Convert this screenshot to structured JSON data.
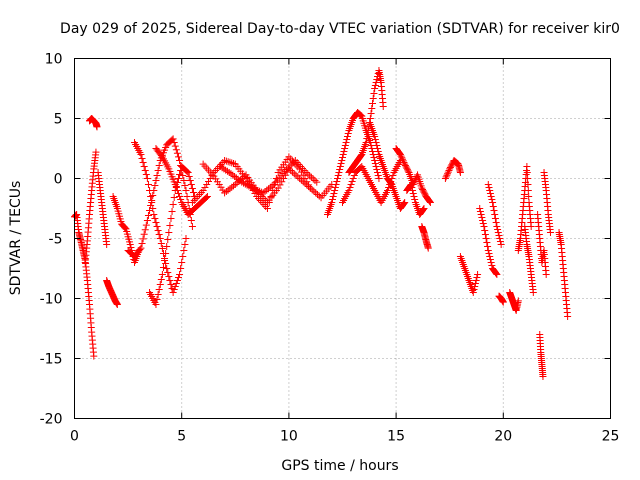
{
  "chart_data": {
    "type": "scatter",
    "title": "Day 029 of 2025, Sidereal Day-to-day VTEC variation (SDTVAR) for receiver kir0",
    "xlabel": "GPS time / hours",
    "ylabel": "SDTVAR / TECUs",
    "xlim": [
      0,
      25
    ],
    "ylim": [
      -20,
      10
    ],
    "grid": true,
    "marker": "+",
    "color": "#ff0000",
    "x_ticks": [
      0,
      5,
      10,
      15,
      20,
      25
    ],
    "y_ticks": [
      -20,
      -15,
      -10,
      -5,
      0,
      5,
      10
    ],
    "x_tick_labels": [
      "0",
      "5",
      "10",
      "15",
      "20",
      "25"
    ],
    "y_tick_labels": [
      "-20",
      "-15",
      "-10",
      "-5",
      "0",
      "5",
      "10"
    ],
    "series": [
      {
        "name": "a1",
        "x": [
          0.0,
          0.1,
          0.2,
          0.3,
          0.4,
          0.5,
          0.6,
          0.7,
          0.8,
          0.9
        ],
        "y": [
          -3.2,
          -3.0,
          -4.5,
          -5.2,
          -6.0,
          -6.8,
          -8.5,
          -10.5,
          -12.8,
          -14.8
        ]
      },
      {
        "name": "a2",
        "x": [
          0.5,
          0.6,
          0.7,
          0.8,
          0.9,
          1.0
        ],
        "y": [
          -7.0,
          -5.2,
          -3.0,
          -1.0,
          0.8,
          2.2
        ]
      },
      {
        "name": "a3",
        "x": [
          0.7,
          0.8,
          0.9,
          1.0,
          1.05
        ],
        "y": [
          4.8,
          5.0,
          4.8,
          4.6,
          4.3
        ]
      },
      {
        "name": "a4",
        "x": [
          1.1,
          1.2,
          1.3,
          1.4,
          1.5
        ],
        "y": [
          0.5,
          -1.0,
          -2.5,
          -4.0,
          -5.5
        ]
      },
      {
        "name": "a5",
        "x": [
          1.5,
          1.6,
          1.7,
          1.8,
          1.9,
          2.0
        ],
        "y": [
          -8.5,
          -9.0,
          -9.4,
          -9.8,
          -10.2,
          -10.5
        ]
      },
      {
        "name": "a6",
        "x": [
          1.8,
          2.0,
          2.2,
          2.4,
          2.6,
          2.8,
          3.0
        ],
        "y": [
          -1.5,
          -2.5,
          -3.8,
          -4.2,
          -5.5,
          -7.0,
          -6.0
        ]
      },
      {
        "name": "b1",
        "x": [
          2.5,
          2.8,
          3.1,
          3.4,
          3.7,
          4.0,
          4.3,
          4.6,
          4.9,
          5.2,
          5.5
        ],
        "y": [
          -6.0,
          -6.5,
          -5.8,
          -3.5,
          -1.0,
          1.5,
          2.8,
          3.3,
          1.5,
          -1.0,
          -4.0
        ]
      },
      {
        "name": "b2",
        "x": [
          3.5,
          3.8,
          4.1,
          4.4,
          4.7,
          5.0,
          5.3,
          5.6
        ],
        "y": [
          -9.5,
          -10.5,
          -8.0,
          -4.5,
          -1.0,
          1.0,
          0.5,
          -1.5
        ]
      },
      {
        "name": "b3",
        "x": [
          2.8,
          3.1,
          3.4,
          3.7,
          4.0,
          4.3,
          4.6,
          4.9,
          5.2
        ],
        "y": [
          3.0,
          2.0,
          0.0,
          -3.0,
          -5.0,
          -7.5,
          -9.5,
          -8.0,
          -5.0
        ]
      },
      {
        "name": "b4",
        "x": [
          3.8,
          4.1,
          4.4,
          4.7,
          5.0,
          5.3,
          5.6,
          5.9,
          6.2
        ],
        "y": [
          2.5,
          1.8,
          0.8,
          -0.5,
          -2.0,
          -3.0,
          -2.5,
          -2.0,
          -1.5
        ]
      },
      {
        "name": "c1",
        "x": [
          6.0,
          6.5,
          7.0,
          7.5,
          8.0,
          8.5,
          9.0,
          9.5,
          10.0,
          10.5,
          11.0,
          11.5,
          12.0
        ],
        "y": [
          1.2,
          0.2,
          -1.2,
          -0.5,
          0.3,
          -1.0,
          -2.0,
          -0.8,
          0.8,
          0.0,
          -0.8,
          -1.6,
          -0.5
        ]
      },
      {
        "name": "c2",
        "x": [
          5.5,
          6.0,
          6.5,
          7.0,
          7.5,
          8.0,
          8.5,
          9.0,
          9.5,
          10.0,
          10.5,
          11.0
        ],
        "y": [
          -2.0,
          -1.0,
          0.5,
          1.5,
          1.2,
          0.0,
          -1.5,
          -2.5,
          0.5,
          1.8,
          0.8,
          -0.8
        ]
      },
      {
        "name": "c3",
        "x": [
          6.8,
          7.3,
          7.8,
          8.3,
          8.8,
          9.3,
          9.8,
          10.3,
          10.8,
          11.3
        ],
        "y": [
          1.0,
          0.4,
          -0.3,
          -0.8,
          -1.2,
          -0.5,
          0.6,
          1.5,
          0.5,
          -0.3
        ]
      },
      {
        "name": "d1",
        "x": [
          11.8,
          12.0,
          12.2,
          12.4,
          12.6,
          12.8,
          13.0,
          13.2,
          13.4,
          13.6,
          13.8,
          14.0,
          14.2
        ],
        "y": [
          -3.0,
          -2.0,
          -0.5,
          1.0,
          2.5,
          4.0,
          5.0,
          5.5,
          5.2,
          4.0,
          3.0,
          1.5,
          0.0
        ]
      },
      {
        "name": "d2",
        "x": [
          12.8,
          13.0,
          13.2,
          13.4,
          13.6,
          13.8,
          14.0,
          14.2,
          14.3,
          14.4
        ],
        "y": [
          0.5,
          1.0,
          1.5,
          2.0,
          3.0,
          5.0,
          7.5,
          9.0,
          8.0,
          6.0
        ]
      },
      {
        "name": "d3",
        "x": [
          12.5,
          12.8,
          13.1,
          13.4,
          13.7,
          14.0,
          14.3,
          14.6,
          14.9,
          15.2
        ],
        "y": [
          -2.0,
          -1.0,
          0.5,
          1.0,
          0.0,
          -1.0,
          -2.0,
          -1.0,
          0.5,
          1.5
        ]
      },
      {
        "name": "d4",
        "x": [
          13.8,
          14.0,
          14.2,
          14.4,
          14.6,
          14.8,
          15.0,
          15.2,
          15.4
        ],
        "y": [
          4.5,
          3.5,
          2.0,
          1.0,
          0.0,
          -0.5,
          -1.5,
          -2.5,
          -2.0
        ]
      },
      {
        "name": "e1",
        "x": [
          15.0,
          15.2,
          15.4,
          15.6,
          15.8,
          16.0,
          16.2,
          16.4,
          16.6
        ],
        "y": [
          2.5,
          2.0,
          1.2,
          0.5,
          -0.5,
          0.3,
          -0.8,
          -1.5,
          -2.0
        ]
      },
      {
        "name": "e2",
        "x": [
          15.5,
          15.7,
          15.9,
          16.1,
          16.3
        ],
        "y": [
          -1.0,
          -0.5,
          -2.0,
          -3.0,
          -2.5
        ]
      },
      {
        "name": "e3",
        "x": [
          16.2,
          16.3,
          16.4,
          16.5
        ],
        "y": [
          -4.0,
          -4.5,
          -5.2,
          -5.8
        ]
      },
      {
        "name": "f1",
        "x": [
          17.3,
          17.5,
          17.7,
          17.9,
          18.0
        ],
        "y": [
          0.0,
          0.8,
          1.5,
          1.2,
          0.5
        ]
      },
      {
        "name": "f2",
        "x": [
          18.0,
          18.2,
          18.4,
          18.6,
          18.8
        ],
        "y": [
          -6.5,
          -7.5,
          -8.5,
          -9.5,
          -8.0
        ]
      },
      {
        "name": "f3",
        "x": [
          18.9,
          19.1,
          19.3,
          19.5,
          19.7
        ],
        "y": [
          -2.5,
          -4.0,
          -6.0,
          -7.5,
          -8.0
        ]
      },
      {
        "name": "f4",
        "x": [
          19.3,
          19.5,
          19.7,
          19.9
        ],
        "y": [
          -0.5,
          -2.0,
          -4.0,
          -5.5
        ]
      },
      {
        "name": "f5",
        "x": [
          19.8,
          19.9,
          20.0
        ],
        "y": [
          -9.8,
          -10.0,
          -10.3
        ]
      },
      {
        "name": "g1",
        "x": [
          20.3,
          20.4,
          20.5,
          20.6,
          20.7
        ],
        "y": [
          -9.5,
          -10.0,
          -10.5,
          -11.0,
          -10.2
        ]
      },
      {
        "name": "g2",
        "x": [
          20.7,
          20.8,
          20.9,
          21.0,
          21.1,
          21.2,
          21.3
        ],
        "y": [
          -6.0,
          -5.0,
          -3.0,
          -1.0,
          1.0,
          -2.0,
          -4.0
        ]
      },
      {
        "name": "g3",
        "x": [
          21.0,
          21.1,
          21.2,
          21.3,
          21.4
        ],
        "y": [
          -4.0,
          -5.5,
          -6.5,
          -8.0,
          -9.5
        ]
      },
      {
        "name": "g4",
        "x": [
          21.6,
          21.7,
          21.8,
          21.9,
          22.0
        ],
        "y": [
          -3.0,
          -5.0,
          -7.0,
          -6.0,
          -8.0
        ]
      },
      {
        "name": "g5",
        "x": [
          21.9,
          22.0,
          22.1,
          22.2
        ],
        "y": [
          0.5,
          -1.0,
          -3.0,
          -4.5
        ]
      },
      {
        "name": "g6",
        "x": [
          21.7,
          21.75,
          21.8,
          21.85
        ],
        "y": [
          -13.0,
          -14.5,
          -15.5,
          -16.5
        ]
      },
      {
        "name": "g7",
        "x": [
          22.6,
          22.7,
          22.8,
          22.9,
          23.0
        ],
        "y": [
          -4.5,
          -5.5,
          -7.5,
          -9.5,
          -11.5
        ]
      }
    ]
  }
}
